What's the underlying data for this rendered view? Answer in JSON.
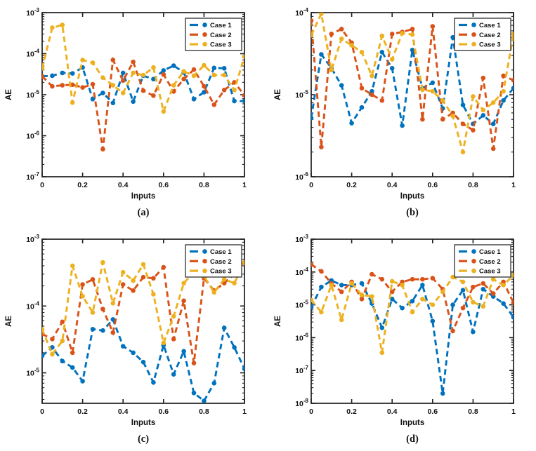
{
  "figure": {
    "background": "#ffffff",
    "axis_color": "#1f1f1f",
    "text_color": "#111111",
    "palette": {
      "case1": "#0072BD",
      "case2": "#D95319",
      "case3": "#EDB120"
    }
  },
  "chart_data": [
    {
      "type": "line",
      "caption": "(a)",
      "xlabel": "Inputs",
      "ylabel": "AE",
      "xlim": [
        0,
        1
      ],
      "xticks": [
        0,
        0.2,
        0.4,
        0.6,
        0.8,
        1
      ],
      "xtick_labels": [
        "0",
        "0.2",
        "0.4",
        "0.6",
        "0.8",
        "1"
      ],
      "yscale": "log",
      "ylim": [
        1e-07,
        0.001
      ],
      "ytick_exponents": [
        -3,
        -4,
        -5,
        -6,
        -7
      ],
      "grid": false,
      "line_style": "dashed",
      "marker": "dot",
      "legend": {
        "position": "northeast",
        "entries": [
          "Case 1",
          "Case 2",
          "Case 3"
        ]
      },
      "x": [
        0,
        0.05,
        0.1,
        0.15,
        0.2,
        0.25,
        0.3,
        0.35,
        0.4,
        0.45,
        0.5,
        0.55,
        0.6,
        0.65,
        0.7,
        0.75,
        0.8,
        0.85,
        0.9,
        0.95,
        1
      ],
      "series": [
        {
          "name": "Case 1",
          "color": "#0072BD",
          "values": [
            2.8e-05,
            2.9e-05,
            3.4e-05,
            3.3e-05,
            4.6e-05,
            7.8e-06,
            1.1e-05,
            6.3e-06,
            3.4e-05,
            6.8e-06,
            2.9e-05,
            2.4e-05,
            3.9e-05,
            5.1e-05,
            3.5e-05,
            7.8e-06,
            1.15e-05,
            4.5e-05,
            4.4e-05,
            7e-06,
            7e-06
          ]
        },
        {
          "name": "Case 2",
          "color": "#D95319",
          "values": [
            2.8e-05,
            1.6e-05,
            1.7e-05,
            1.75e-05,
            1.5e-05,
            1.8e-05,
            4.7e-07,
            7e-05,
            2.2e-05,
            6.3e-05,
            1.25e-05,
            9.5e-06,
            3.1e-05,
            1.2e-05,
            2.4e-05,
            4.1e-05,
            1.6e-05,
            5.7e-06,
            1.3e-05,
            2e-05,
            9.7e-06
          ]
        },
        {
          "name": "Case 3",
          "color": "#EDB120",
          "values": [
            4.4e-05,
            0.00043,
            0.0005,
            6.4e-06,
            7e-05,
            6e-05,
            2.6e-05,
            1.7e-05,
            1.1e-05,
            3.4e-05,
            3e-05,
            4.6e-05,
            3.9e-06,
            1.7e-05,
            3.7e-05,
            2.9e-05,
            5.2e-05,
            3e-05,
            3e-05,
            1.3e-05,
            8.5e-05
          ]
        }
      ]
    },
    {
      "type": "line",
      "caption": "(b)",
      "xlabel": "Inputs",
      "ylabel": "AE",
      "xlim": [
        0,
        1
      ],
      "xticks": [
        0,
        0.2,
        0.4,
        0.6,
        0.8,
        1
      ],
      "xtick_labels": [
        "0",
        "0.2",
        "0.4",
        "0.6",
        "0.8",
        "1"
      ],
      "yscale": "log",
      "ylim": [
        1e-06,
        0.0001
      ],
      "ytick_exponents": [
        -4,
        -5,
        -6
      ],
      "grid": false,
      "line_style": "dashed",
      "marker": "dot",
      "legend": {
        "position": "northeast",
        "entries": [
          "Case 1",
          "Case 2",
          "Case 3"
        ]
      },
      "x": [
        0,
        0.05,
        0.1,
        0.15,
        0.2,
        0.25,
        0.3,
        0.35,
        0.4,
        0.45,
        0.5,
        0.55,
        0.6,
        0.65,
        0.7,
        0.75,
        0.8,
        0.85,
        0.9,
        0.95,
        1
      ],
      "series": [
        {
          "name": "Case 1",
          "color": "#0072BD",
          "values": [
            5.2e-06,
            3.1e-05,
            2.1e-05,
            1.3e-05,
            4.5e-06,
            7e-06,
            1.1e-05,
            3.3e-05,
            2.1e-05,
            4.2e-06,
            3.5e-05,
            1.2e-05,
            1.4e-05,
            6.8e-06,
            5e-05,
            7.5e-06,
            4.4e-06,
            5.6e-06,
            4.4e-06,
            8.5e-06,
            1.2e-05
          ]
        },
        {
          "name": "Case 2",
          "color": "#D95319",
          "values": [
            8e-05,
            2.3e-06,
            5.5e-05,
            6.3e-05,
            4.3e-05,
            1.2e-05,
            1e-05,
            8.5e-06,
            5.5e-05,
            5.8e-05,
            6.3e-05,
            5e-06,
            6.8e-05,
            5e-06,
            6e-06,
            4.4e-06,
            3.7e-06,
            1.6e-05,
            2.2e-06,
            1.7e-05,
            1.5e-05
          ]
        },
        {
          "name": "Case 3",
          "color": "#EDB120",
          "values": [
            5.3e-05,
            9.7e-05,
            2e-05,
            4.8e-05,
            4e-05,
            3.3e-05,
            1.7e-05,
            5.2e-05,
            2.7e-05,
            5.6e-05,
            5.4e-05,
            1.15e-05,
            1.1e-05,
            8.5e-06,
            5.5e-06,
            2e-06,
            9.5e-06,
            6.5e-06,
            8e-06,
            1.1e-05,
            5.5e-05
          ]
        }
      ]
    },
    {
      "type": "line",
      "caption": "(c)",
      "xlabel": "Inputs",
      "ylabel": "AE",
      "xlim": [
        0,
        1
      ],
      "xticks": [
        0,
        0.2,
        0.4,
        0.6,
        0.8,
        1
      ],
      "xtick_labels": [
        "0",
        "0.2",
        "0.4",
        "0.6",
        "0.8",
        "1"
      ],
      "yscale": "log",
      "ylim": [
        3.5e-06,
        0.001
      ],
      "ytick_exponents": [
        -3,
        -4,
        -5
      ],
      "grid": false,
      "line_style": "dashed",
      "marker": "dot",
      "legend": {
        "position": "northeast",
        "entries": [
          "Case 1",
          "Case 2",
          "Case 3"
        ]
      },
      "x": [
        0,
        0.05,
        0.1,
        0.15,
        0.2,
        0.25,
        0.3,
        0.35,
        0.4,
        0.45,
        0.5,
        0.55,
        0.6,
        0.65,
        0.7,
        0.75,
        0.8,
        0.85,
        0.9,
        0.95,
        1
      ],
      "series": [
        {
          "name": "Case 1",
          "color": "#0072BD",
          "values": [
            1.8e-05,
            2.4e-05,
            1.5e-05,
            1.2e-05,
            7.5e-06,
            4.5e-05,
            4.3e-05,
            6.3e-05,
            2.5e-05,
            2e-05,
            1.45e-05,
            7.2e-06,
            2.6e-05,
            9.5e-06,
            2.1e-05,
            5e-06,
            3.8e-06,
            7e-06,
            4.7e-05,
            2.4e-05,
            1.15e-05
          ]
        },
        {
          "name": "Case 2",
          "color": "#D95319",
          "values": [
            3.8e-05,
            3.2e-05,
            5.8e-05,
            2e-05,
            0.00021,
            0.00025,
            9e-05,
            4e-05,
            0.00021,
            0.00017,
            0.00027,
            0.00026,
            0.00038,
            3.2e-05,
            0.00012,
            1.4e-05,
            0.00026,
            0.00017,
            0.00022,
            0.0003,
            0.00043
          ]
        },
        {
          "name": "Case 3",
          "color": "#EDB120",
          "values": [
            4.5e-05,
            1.9e-05,
            3e-05,
            0.0004,
            0.00014,
            8e-05,
            0.00045,
            0.00011,
            0.00032,
            0.00024,
            0.00042,
            0.00015,
            2.8e-05,
            7e-05,
            0.00022,
            0.00032,
            0.00028,
            0.00016,
            0.00025,
            0.00022,
            0.00045
          ]
        }
      ]
    },
    {
      "type": "line",
      "caption": "(d)",
      "xlabel": "Inputs",
      "ylabel": "AE",
      "xlim": [
        0,
        1
      ],
      "xticks": [
        0,
        0.2,
        0.4,
        0.6,
        0.8,
        1
      ],
      "xtick_labels": [
        "0",
        "0.2",
        "0.4",
        "0.6",
        "0.8",
        "1"
      ],
      "yscale": "log",
      "ylim": [
        1e-08,
        0.001
      ],
      "ytick_exponents": [
        -3,
        -4,
        -5,
        -6,
        -7,
        -8
      ],
      "grid": false,
      "line_style": "dashed",
      "marker": "dot",
      "legend": {
        "position": "northeast",
        "entries": [
          "Case 1",
          "Case 2",
          "Case 3"
        ]
      },
      "x": [
        0,
        0.05,
        0.1,
        0.15,
        0.2,
        0.25,
        0.3,
        0.35,
        0.4,
        0.45,
        0.5,
        0.55,
        0.6,
        0.65,
        0.7,
        0.75,
        0.8,
        0.85,
        0.9,
        0.95,
        1
      ],
      "series": [
        {
          "name": "Case 1",
          "color": "#0072BD",
          "values": [
            8.5e-06,
            3.5e-05,
            5.5e-05,
            4e-05,
            4e-05,
            4.5e-05,
            1.1e-05,
            2e-06,
            1.5e-05,
            8e-06,
            1.3e-05,
            4e-05,
            3.2e-06,
            2e-08,
            1e-05,
            2.8e-05,
            1.5e-06,
            3e-05,
            1.8e-05,
            1.1e-05,
            4.2e-06
          ]
        },
        {
          "name": "Case 2",
          "color": "#D95319",
          "values": [
            0.00017,
            0.000105,
            4.5e-05,
            2.5e-05,
            5e-05,
            1.5e-05,
            8.5e-05,
            6e-05,
            2.5e-05,
            5e-05,
            6e-05,
            6e-05,
            6.5e-05,
            3e-05,
            1.6e-06,
            8e-06,
            3.5e-05,
            4.5e-05,
            2.2e-05,
            5e-05,
            1.15e-05
          ]
        },
        {
          "name": "Case 3",
          "color": "#EDB120",
          "values": [
            1.4e-05,
            6e-06,
            4e-05,
            3.5e-06,
            4.5e-05,
            2e-05,
            1.8e-05,
            3.5e-07,
            5.2e-05,
            4e-05,
            6e-06,
            1.5e-05,
            1e-05,
            2.5e-05,
            7e-05,
            5e-05,
            1.2e-05,
            9e-06,
            6e-05,
            4e-05,
            8e-05
          ]
        }
      ]
    }
  ]
}
